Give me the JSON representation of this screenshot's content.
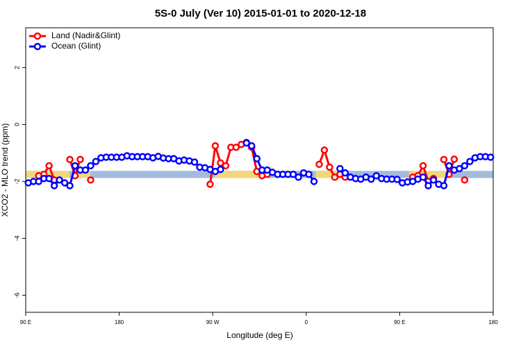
{
  "chart_data": {
    "type": "line",
    "title": "5S-0 July (Ver 10)   2015-01-01 to 2020-12-18",
    "xlabel": "Longitude (deg E)",
    "ylabel": "XCO2 - MLO trend (ppm)",
    "x": [
      92.5,
      97.5,
      102.5,
      107.5,
      112.5,
      117.5,
      122.5,
      127.5,
      132.5,
      137.5,
      142.5,
      147.5,
      152.5,
      157.5,
      162.5,
      167.5,
      172.5,
      177.5,
      182.5,
      187.5,
      192.5,
      197.5,
      202.5,
      207.5,
      212.5,
      217.5,
      222.5,
      227.5,
      232.5,
      237.5,
      242.5,
      247.5,
      252.5,
      257.5,
      262.5,
      267.5,
      272.5,
      277.5,
      282.5,
      287.5,
      292.5,
      297.5,
      302.5,
      307.5,
      312.5,
      317.5,
      322.5,
      327.5,
      332.5,
      337.5,
      342.5,
      347.5,
      352.5,
      357.5,
      362.5,
      367.5,
      372.5,
      377.5,
      382.5,
      387.5,
      392.5,
      397.5,
      402.5,
      407.5,
      412.5,
      417.5,
      422.5,
      427.5,
      432.5,
      437.5,
      442.5,
      447.5,
      452.5,
      457.5,
      462.5,
      467.5,
      472.5,
      477.5,
      482.5,
      487.5,
      492.5,
      497.5,
      502.5,
      507.5,
      512.5,
      517.5,
      522.5,
      527.5,
      532.5,
      537.5
    ],
    "series": [
      {
        "name": "Land (Nadir&Glint)",
        "color": "#ff0000",
        "values": [
          null,
          null,
          -1.8,
          -1.75,
          -1.45,
          -1.95,
          null,
          null,
          -1.23,
          -1.8,
          -1.23,
          null,
          -1.95,
          null,
          null,
          null,
          null,
          null,
          null,
          null,
          null,
          null,
          null,
          null,
          null,
          null,
          null,
          null,
          null,
          null,
          null,
          null,
          null,
          null,
          null,
          -2.1,
          -0.75,
          -1.35,
          -1.45,
          -0.8,
          -0.8,
          -0.7,
          -0.63,
          -0.8,
          -1.65,
          -1.8,
          -1.75,
          null,
          null,
          null,
          null,
          null,
          null,
          null,
          null,
          null,
          -1.4,
          -0.9,
          -1.5,
          -1.85,
          -1.75,
          -1.85,
          null,
          null,
          null,
          null,
          null,
          null,
          null,
          null,
          null,
          null,
          null,
          null,
          -1.85,
          -1.8,
          -1.45,
          -2.0,
          -1.9,
          null,
          -1.23,
          -1.75,
          -1.22,
          null,
          -1.95,
          null,
          null,
          null,
          null,
          null
        ]
      },
      {
        "name": "Ocean (Glint)",
        "color": "#0000ff",
        "values": [
          -2.05,
          -2.0,
          -2.0,
          -1.9,
          -1.9,
          -2.15,
          -1.95,
          -2.05,
          -2.15,
          -1.45,
          -1.6,
          -1.6,
          -1.45,
          -1.3,
          -1.17,
          -1.15,
          -1.15,
          -1.15,
          -1.15,
          -1.1,
          -1.13,
          -1.13,
          -1.13,
          -1.13,
          -1.17,
          -1.12,
          -1.18,
          -1.2,
          -1.2,
          -1.28,
          -1.25,
          -1.28,
          -1.32,
          -1.5,
          -1.52,
          -1.58,
          -1.65,
          -1.58,
          null,
          null,
          null,
          null,
          -0.65,
          -0.75,
          -1.2,
          -1.6,
          -1.6,
          -1.68,
          -1.75,
          -1.75,
          -1.75,
          -1.75,
          -1.85,
          -1.7,
          -1.75,
          -2.0,
          null,
          null,
          null,
          null,
          -1.55,
          -1.7,
          -1.85,
          -1.9,
          -1.92,
          -1.85,
          -1.92,
          -1.8,
          -1.9,
          -1.92,
          -1.92,
          -1.93,
          -2.05,
          -2.02,
          -2.0,
          -1.92,
          -1.85,
          -2.15,
          -1.95,
          -2.1,
          -2.15,
          -1.45,
          -1.6,
          -1.55,
          -1.45,
          -1.3,
          -1.17,
          -1.13,
          -1.13,
          -1.15
        ]
      }
    ],
    "band": {
      "ylim": [
        -1.88,
        -1.63
      ],
      "color": "#a3bbdd",
      "land_color": "#f5d77a",
      "land_x": [
        [
          90,
          132
        ],
        [
          136,
          152
        ],
        [
          272,
          315
        ],
        [
          369,
          399
        ],
        [
          459,
          499
        ]
      ]
    },
    "xlim": [
      90,
      540
    ],
    "xticks": [
      {
        "value": 90,
        "label": "90 E"
      },
      180,
      {
        "value": 270,
        "label": "90 W"
      },
      {
        "value": 360,
        "label": "0"
      },
      {
        "value": 450,
        "label": "90 E"
      },
      {
        "value": 540,
        "label": "180"
      }
    ],
    "ylim": [
      -6.6,
      3.4
    ],
    "yticks": [
      2,
      0,
      -2,
      -4,
      -6
    ],
    "legend": "upper left"
  }
}
